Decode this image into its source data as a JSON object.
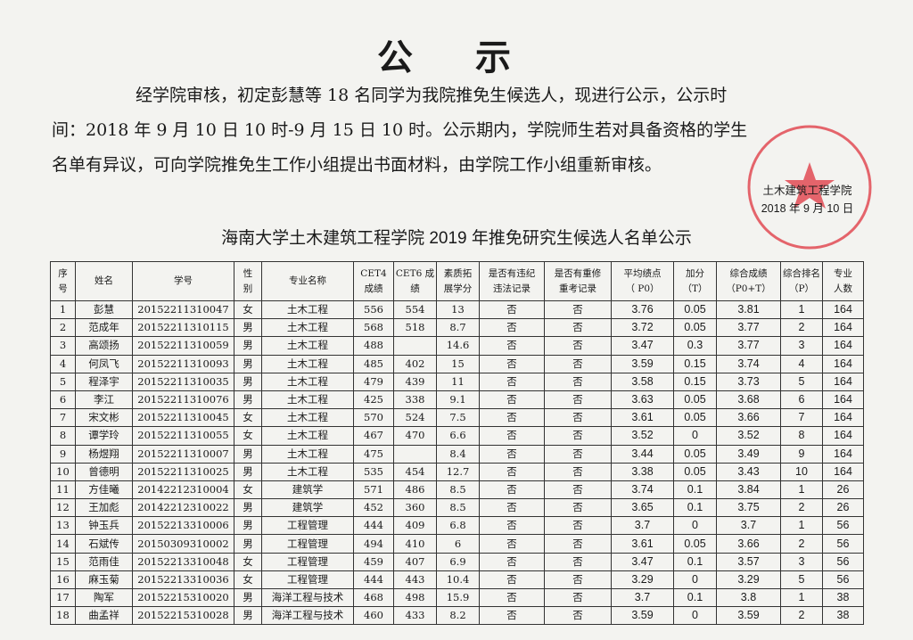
{
  "title": "公 示",
  "notice": {
    "lines": [
      "经学院审核，初定彭慧等 18 名同学为我院推免生候选人，现进行公示，公示时",
      "间：2018 年 9 月 10 日 10 时-9 月 15 日 10 时。公示期内，学院师生若对具备资格的学生",
      "名单有异议，可向学院推免生工作小组提出书面材料，由学院工作小组重新审核。"
    ]
  },
  "signature": {
    "org": "土木建筑工程学院",
    "date": "2018 年 9 月 10 日"
  },
  "table": {
    "title": "海南大学土木建筑工程学院 2019 年推免研究生候选人名单公示",
    "headers": [
      [
        "序",
        "号"
      ],
      [
        "姓名"
      ],
      [
        "学号"
      ],
      [
        "性",
        "别"
      ],
      [
        "专业名称"
      ],
      [
        "CET4",
        "成绩"
      ],
      [
        "CET6 成",
        "绩"
      ],
      [
        "素质拓",
        "展学分"
      ],
      [
        "是否有违纪",
        "违法记录"
      ],
      [
        "是否有重修",
        "重考记录"
      ],
      [
        "平均绩点",
        "（ P0）"
      ],
      [
        "加分",
        "（T）"
      ],
      [
        "综合成绩",
        "（P0+T）"
      ],
      [
        "综合排名",
        "（P）"
      ],
      [
        "专业",
        "人数"
      ]
    ],
    "rows": [
      [
        "1",
        "彭慧",
        "20152211310047",
        "女",
        "土木工程",
        "556",
        "554",
        "13",
        "否",
        "否",
        "3.76",
        "0.05",
        "3.81",
        "1",
        "164"
      ],
      [
        "2",
        "范成年",
        "20152211310115",
        "男",
        "土木工程",
        "568",
        "518",
        "8.7",
        "否",
        "否",
        "3.72",
        "0.05",
        "3.77",
        "2",
        "164"
      ],
      [
        "3",
        "高颂扬",
        "20152211310059",
        "男",
        "土木工程",
        "488",
        null,
        "14.6",
        "否",
        "否",
        "3.47",
        "0.3",
        "3.77",
        "3",
        "164"
      ],
      [
        "4",
        "何凤飞",
        "20152211310093",
        "男",
        "土木工程",
        "485",
        "402",
        "15",
        "否",
        "否",
        "3.59",
        "0.15",
        "3.74",
        "4",
        "164"
      ],
      [
        "5",
        "程泽宇",
        "20152211310035",
        "男",
        "土木工程",
        "479",
        "439",
        "11",
        "否",
        "否",
        "3.58",
        "0.15",
        "3.73",
        "5",
        "164"
      ],
      [
        "6",
        "李江",
        "20152211310076",
        "男",
        "土木工程",
        "425",
        "338",
        "9.1",
        "否",
        "否",
        "3.63",
        "0.05",
        "3.68",
        "6",
        "164"
      ],
      [
        "7",
        "宋文彬",
        "20152211310045",
        "女",
        "土木工程",
        "570",
        "524",
        "7.5",
        "否",
        "否",
        "3.61",
        "0.05",
        "3.66",
        "7",
        "164"
      ],
      [
        "8",
        "谭学玲",
        "20152211310055",
        "女",
        "土木工程",
        "467",
        "470",
        "6.6",
        "否",
        "否",
        "3.52",
        "0",
        "3.52",
        "8",
        "164"
      ],
      [
        "9",
        "杨煜翔",
        "20152211310007",
        "男",
        "土木工程",
        "475",
        null,
        "8.4",
        "否",
        "否",
        "3.44",
        "0.05",
        "3.49",
        "9",
        "164"
      ],
      [
        "10",
        "曾德明",
        "20152211310025",
        "男",
        "土木工程",
        "535",
        "454",
        "12.7",
        "否",
        "否",
        "3.38",
        "0.05",
        "3.43",
        "10",
        "164"
      ],
      [
        "11",
        "方佳曦",
        "20142212310004",
        "女",
        "建筑学",
        "571",
        "486",
        "8.5",
        "否",
        "否",
        "3.74",
        "0.1",
        "3.84",
        "1",
        "26"
      ],
      [
        "12",
        "王加彪",
        "20142212310022",
        "男",
        "建筑学",
        "452",
        "360",
        "8.5",
        "否",
        "否",
        "3.65",
        "0.1",
        "3.75",
        "2",
        "26"
      ],
      [
        "13",
        "钟玉兵",
        "20152213310006",
        "男",
        "工程管理",
        "444",
        "409",
        "6.8",
        "否",
        "否",
        "3.7",
        "0",
        "3.7",
        "1",
        "56"
      ],
      [
        "14",
        "石斌传",
        "20150309310002",
        "男",
        "工程管理",
        "494",
        "410",
        "6",
        "否",
        "否",
        "3.61",
        "0.05",
        "3.66",
        "2",
        "56"
      ],
      [
        "15",
        "范雨佳",
        "20152213310048",
        "女",
        "工程管理",
        "459",
        "407",
        "6.9",
        "否",
        "否",
        "3.47",
        "0.1",
        "3.57",
        "3",
        "56"
      ],
      [
        "16",
        "麻玉菊",
        "20152213310036",
        "女",
        "工程管理",
        "444",
        "443",
        "10.4",
        "否",
        "否",
        "3.29",
        "0",
        "3.29",
        "5",
        "56"
      ],
      [
        "17",
        "陶军",
        "20152215310020",
        "男",
        "海洋工程与技术",
        "468",
        "498",
        "15.9",
        "否",
        "否",
        "3.7",
        "0.1",
        "3.8",
        "1",
        "38"
      ],
      [
        "18",
        "曲孟祥",
        "20152215310028",
        "男",
        "海洋工程与技术",
        "460",
        "433",
        "8.2",
        "否",
        "否",
        "3.59",
        "0",
        "3.59",
        "2",
        "38"
      ]
    ]
  }
}
